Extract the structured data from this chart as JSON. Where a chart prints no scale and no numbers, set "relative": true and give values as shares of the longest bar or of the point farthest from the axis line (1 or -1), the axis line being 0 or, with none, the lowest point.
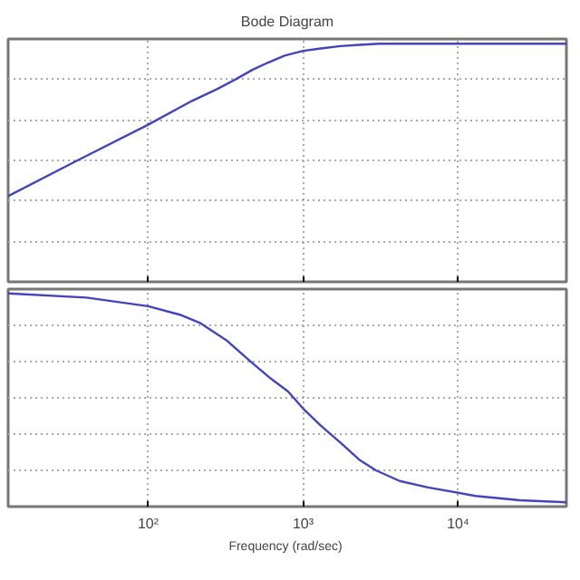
{
  "chart_data": [
    {
      "type": "line",
      "title": "Bode Diagram",
      "relative": true,
      "log": "x",
      "grid": true,
      "tick_labels": false,
      "line_style": "solid",
      "xlim": [
        12.5,
        50000
      ],
      "xticks": [
        {
          "value": 100,
          "label": null
        },
        {
          "value": 1000,
          "label": null
        },
        {
          "value": 10000,
          "label": null
        }
      ],
      "x": [
        12.5,
        35,
        100,
        192,
        280,
        366,
        470,
        590,
        760,
        1000,
        1300,
        1740,
        2300,
        3090,
        50000
      ],
      "series": [
        {
          "color": "#4444bb",
          "values": [
            0.36,
            0.51,
            0.66,
            0.76,
            0.81,
            0.85,
            0.89,
            0.92,
            0.95,
            0.97,
            0.98,
            0.99,
            0.995,
            1.0,
            1.0
          ]
        }
      ]
    },
    {
      "type": "line",
      "xlabel": "Frequency  (rad/sec)",
      "relative": true,
      "log": "x",
      "grid": true,
      "tick_labels": "x",
      "line_style": "solid",
      "xlim": [
        12.5,
        50000
      ],
      "xticks": [
        {
          "value": 100,
          "label": "10²"
        },
        {
          "value": 1000,
          "label": "10³"
        },
        {
          "value": 10000,
          "label": "10⁴"
        }
      ],
      "x": [
        12.5,
        40,
        100,
        160,
        218,
        320,
        476,
        620,
        800,
        1000,
        1300,
        1740,
        2300,
        2950,
        4200,
        6400,
        12960,
        25000,
        50000
      ],
      "series": [
        {
          "color": "#4444bb",
          "values": [
            1.0,
            0.98,
            0.94,
            0.9,
            0.86,
            0.78,
            0.67,
            0.6,
            0.54,
            0.46,
            0.38,
            0.3,
            0.22,
            0.17,
            0.12,
            0.09,
            0.05,
            0.03,
            0.02
          ]
        }
      ]
    }
  ]
}
